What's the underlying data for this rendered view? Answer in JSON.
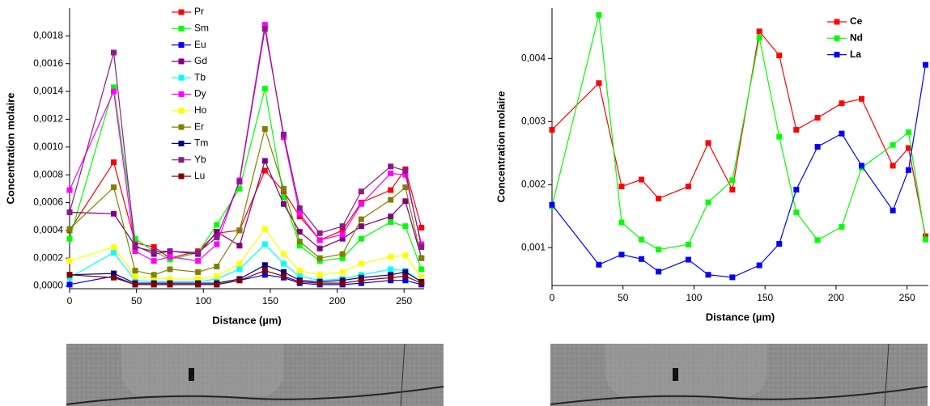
{
  "chart_data": [
    {
      "type": "line",
      "xlabel": "Distance (µm)",
      "ylabel": "Concentration molaire",
      "legend": "top-center",
      "legend_bold": false,
      "x": [
        0,
        33,
        49,
        63,
        75,
        96,
        110,
        127,
        146,
        160,
        172,
        187,
        204,
        218,
        240,
        251,
        263
      ],
      "xlim": [
        0,
        265
      ],
      "xticks": [
        0,
        50,
        100,
        150,
        200,
        250
      ],
      "ylim": [
        -2e-05,
        0.002
      ],
      "yticks": [
        {
          "value": 0,
          "label": "0,0000"
        },
        {
          "value": 0.0002,
          "label": "0,0002"
        },
        {
          "value": 0.0004,
          "label": "0,0004"
        },
        {
          "value": 0.0006,
          "label": "0,0006"
        },
        {
          "value": 0.0008,
          "label": "0,0008"
        },
        {
          "value": 0.001,
          "label": "0,0010"
        },
        {
          "value": 0.0012,
          "label": "0,0012"
        },
        {
          "value": 0.0014,
          "label": "0,0014"
        },
        {
          "value": 0.0016,
          "label": "0,0016"
        },
        {
          "value": 0.0018,
          "label": "0,0018"
        }
      ],
      "series": [
        {
          "name": "Pr",
          "color": "#ff0000",
          "values": [
            0.0004,
            0.00089,
            0.00031,
            0.00028,
            0.0002,
            0.00025,
            0.00038,
            0.0004,
            0.00083,
            0.00068,
            0.0005,
            0.00033,
            0.0004,
            0.0006,
            0.00069,
            0.00084,
            0.00042
          ]
        },
        {
          "name": "Sm",
          "color": "#00ff00",
          "values": [
            0.00034,
            0.00143,
            0.00034,
            0.00025,
            0.00019,
            0.00024,
            0.00044,
            0.0007,
            0.00142,
            0.00064,
            0.00029,
            0.00018,
            0.0002,
            0.00034,
            0.00046,
            0.00043,
            0.00012
          ]
        },
        {
          "name": "Eu",
          "color": "#0000ff",
          "values": [
            1e-05,
            7e-05,
            1e-05,
            1e-05,
            1e-05,
            1e-05,
            1e-05,
            4e-05,
            8e-05,
            6e-05,
            2e-05,
            1e-05,
            1e-05,
            2e-05,
            4e-05,
            4e-05,
            1e-05
          ]
        },
        {
          "name": "Gd",
          "color": "#800080",
          "values": [
            0.00053,
            0.00052,
            0.00029,
            0.00023,
            0.00025,
            0.00023,
            0.00039,
            0.00029,
            0.0009,
            0.00059,
            0.00039,
            0.00027,
            0.00034,
            0.00043,
            0.0005,
            0.00061,
            0.0002
          ]
        },
        {
          "name": "Tb",
          "color": "#00ffff",
          "values": [
            6e-05,
            0.00024,
            4e-05,
            3e-05,
            3e-05,
            3e-05,
            5e-05,
            0.00012,
            0.0003,
            0.00016,
            7e-05,
            4e-05,
            5e-05,
            8e-05,
            0.00012,
            0.00011,
            3e-05
          ]
        },
        {
          "name": "Dy",
          "color": "#ff00ff",
          "values": [
            0.00069,
            0.0014,
            0.00025,
            0.00018,
            0.00021,
            0.00018,
            0.0003,
            0.00076,
            0.00188,
            0.00107,
            0.00052,
            0.00033,
            0.00037,
            0.00059,
            0.00081,
            0.0008,
            0.0003
          ]
        },
        {
          "name": "Ho",
          "color": "#ffff00",
          "values": [
            0.00018,
            0.00028,
            7e-05,
            6e-05,
            5e-05,
            5e-05,
            7e-05,
            0.00016,
            0.00041,
            0.00023,
            0.00011,
            8e-05,
            0.0001,
            0.00016,
            0.00021,
            0.00022,
            6e-05
          ]
        },
        {
          "name": "Er",
          "color": "#808000",
          "values": [
            0.00041,
            0.00071,
            0.00011,
            8e-05,
            0.00012,
            0.0001,
            0.00014,
            0.0004,
            0.00113,
            0.0007,
            0.00032,
            0.0002,
            0.00023,
            0.00048,
            0.00062,
            0.00071,
            0.0002
          ]
        },
        {
          "name": "Tm",
          "color": "#000080",
          "values": [
            8e-05,
            9e-05,
            2e-05,
            2e-05,
            2e-05,
            2e-05,
            2e-05,
            5e-05,
            0.00015,
            0.0001,
            4e-05,
            3e-05,
            4e-05,
            6e-05,
            8e-05,
            0.0001,
            3e-05
          ]
        },
        {
          "name": "Yb",
          "color": "#8b1a8b",
          "values": [
            0.00053,
            0.00168,
            0.00028,
            0.00025,
            0.00025,
            0.00024,
            0.00035,
            0.00075,
            0.00185,
            0.00109,
            0.00056,
            0.00038,
            0.00043,
            0.00068,
            0.00086,
            0.00083,
            0.00028
          ]
        },
        {
          "name": "Lu",
          "color": "#800000",
          "values": [
            8e-05,
            6e-05,
            1e-05,
            1e-05,
            1e-05,
            1e-05,
            1e-05,
            4e-05,
            0.00011,
            7e-05,
            3e-05,
            2e-05,
            2e-05,
            4e-05,
            6e-05,
            7e-05,
            2e-05
          ]
        }
      ]
    },
    {
      "type": "line",
      "xlabel": "Distance (µm)",
      "ylabel": "Concentration molaire",
      "legend": "top-right",
      "legend_bold": true,
      "x": [
        0,
        33,
        49,
        63,
        75,
        96,
        110,
        127,
        146,
        160,
        172,
        187,
        204,
        218,
        240,
        251,
        263
      ],
      "xlim": [
        0,
        265
      ],
      "xticks": [
        0,
        50,
        100,
        150,
        200,
        250
      ],
      "ylim": [
        0.0004,
        0.0048
      ],
      "yticks": [
        {
          "value": 0.001,
          "label": "0,001"
        },
        {
          "value": 0.002,
          "label": "0,002"
        },
        {
          "value": 0.003,
          "label": "0,003"
        },
        {
          "value": 0.004,
          "label": "0,004"
        }
      ],
      "series": [
        {
          "name": "Ce",
          "color": "#ff0000",
          "values": [
            0.00287,
            0.00361,
            0.00197,
            0.00208,
            0.00178,
            0.00197,
            0.00266,
            0.00192,
            0.00443,
            0.00405,
            0.00287,
            0.00306,
            0.00329,
            0.00336,
            0.0023,
            0.00258,
            0.00118
          ]
        },
        {
          "name": "Nd",
          "color": "#00ff00",
          "values": [
            0.00166,
            0.00469,
            0.0014,
            0.00113,
            0.00097,
            0.00105,
            0.00172,
            0.00207,
            0.00433,
            0.00276,
            0.00156,
            0.00112,
            0.00133,
            0.00227,
            0.00263,
            0.00283,
            0.00113
          ]
        },
        {
          "name": "La",
          "color": "#0000ff",
          "values": [
            0.00168,
            0.00073,
            0.00089,
            0.00082,
            0.00062,
            0.00081,
            0.00057,
            0.00053,
            0.00072,
            0.00106,
            0.00192,
            0.0026,
            0.00281,
            0.0023,
            0.00159,
            0.00223,
            0.0039
          ]
        }
      ]
    }
  ]
}
